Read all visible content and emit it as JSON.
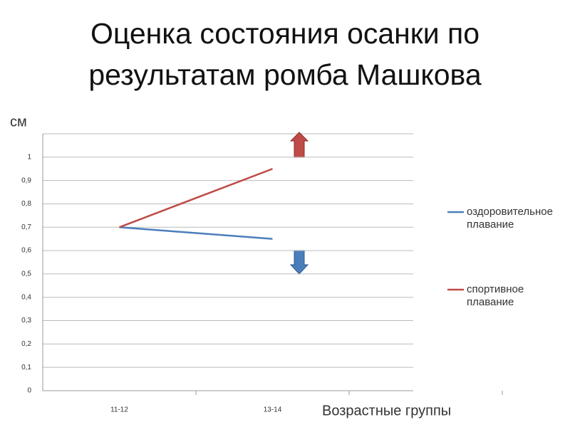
{
  "chart_data": {
    "type": "line",
    "title": "Оценка состояния осанки по результатам ромба Машкова",
    "y_label": "см",
    "x_label": "Возрастные группы",
    "categories": [
      "11-12",
      "13-14",
      null
    ],
    "series": [
      {
        "name": "оздоровительное плавание",
        "color": "#4a7ebb",
        "values": [
          0.7,
          0.65,
          null
        ]
      },
      {
        "name": "спортивное плавание",
        "color": "#be4b48",
        "values": [
          0.7,
          0.95,
          null
        ]
      }
    ],
    "ylim": [
      0,
      1.1
    ],
    "yticks": [
      0,
      {
        "value": 0.1,
        "label": "0,1"
      },
      {
        "value": 0.2,
        "label": "0,2"
      },
      {
        "value": 0.3,
        "label": "0,3"
      },
      {
        "value": 0.4,
        "label": "0,4"
      },
      {
        "value": 0.5,
        "label": "0,5"
      },
      {
        "value": 0.6,
        "label": "0,6"
      },
      {
        "value": 0.7,
        "label": "0,7"
      },
      {
        "value": 0.8,
        "label": "0,8"
      },
      {
        "value": 0.9,
        "label": "0,9"
      },
      1
    ],
    "grid": true
  }
}
